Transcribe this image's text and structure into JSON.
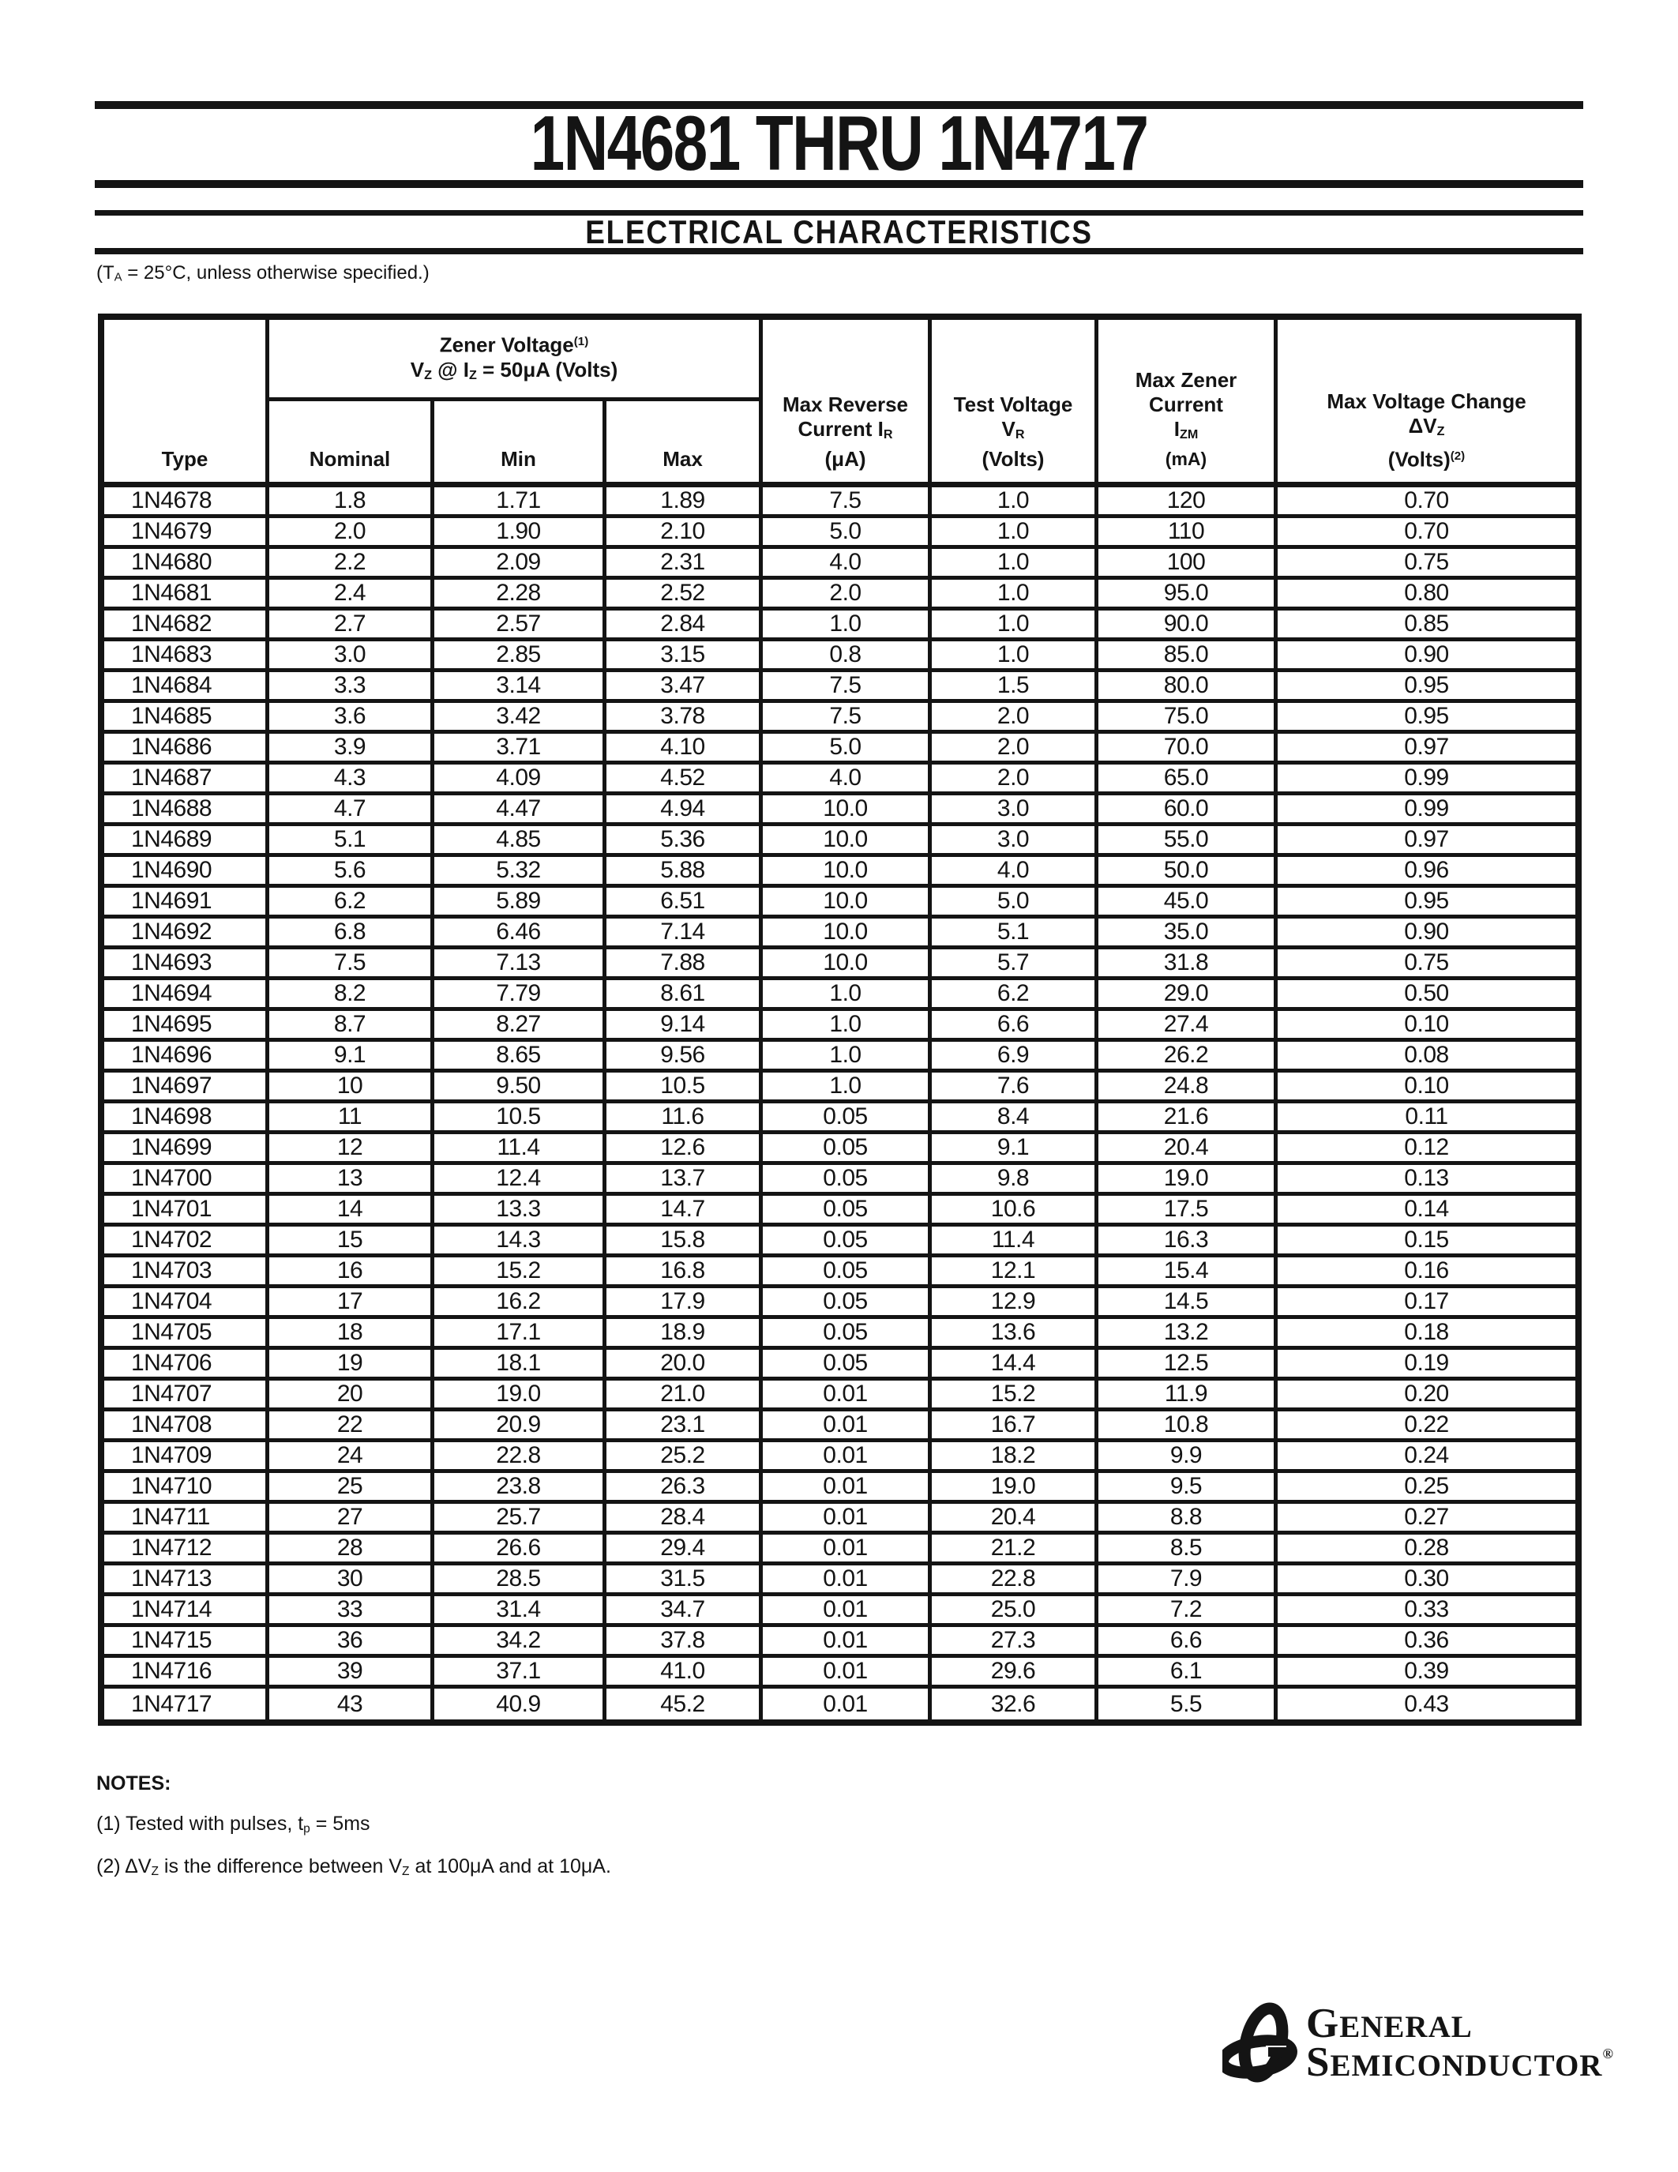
{
  "page": {
    "title": "1N4681 THRU 1N4717",
    "section_title": "ELECTRICAL CHARACTERISTICS",
    "condition": {
      "t1": "(T",
      "sub1": "A",
      "t2": " = 25°C, unless otherwise specified.)"
    }
  },
  "table": {
    "header": {
      "type_label": "Type",
      "zener_group": {
        "title": "Zener Voltage",
        "title_sup": "(1)",
        "cond_v": "V",
        "cond_v_sub": "Z",
        "cond_mid": " @ I",
        "cond_i_sub": "Z",
        "cond_rest": " = 50μA (Volts)",
        "nominal": "Nominal",
        "min": "Min",
        "max": "Max"
      },
      "ir": {
        "l1": "Max Reverse",
        "l2a": "Current I",
        "l2_sub": "R",
        "l3": "(μA)"
      },
      "vr": {
        "l1": "Test Voltage",
        "l2a": "V",
        "l2_sub": "R",
        "l3": "(Volts)"
      },
      "izm": {
        "l1": "Max Zener",
        "l2": "Current",
        "l3a": "I",
        "l3_sub": "ZM",
        "l4": "(mA)"
      },
      "dvz": {
        "l1": "Max Voltage Change",
        "l2a": "ΔV",
        "l2_sub": "Z",
        "l3a": "(Volts)",
        "l3_sup": "(2)"
      }
    },
    "rows": [
      {
        "type": "1N4678",
        "nominal": "1.8",
        "min": "1.71",
        "max": "1.89",
        "ir": "7.5",
        "vr": "1.0",
        "izm": "120",
        "dvz": "0.70"
      },
      {
        "type": "1N4679",
        "nominal": "2.0",
        "min": "1.90",
        "max": "2.10",
        "ir": "5.0",
        "vr": "1.0",
        "izm": "110",
        "dvz": "0.70"
      },
      {
        "type": "1N4680",
        "nominal": "2.2",
        "min": "2.09",
        "max": "2.31",
        "ir": "4.0",
        "vr": "1.0",
        "izm": "100",
        "dvz": "0.75"
      },
      {
        "type": "1N4681",
        "nominal": "2.4",
        "min": "2.28",
        "max": "2.52",
        "ir": "2.0",
        "vr": "1.0",
        "izm": "95.0",
        "dvz": "0.80"
      },
      {
        "type": "1N4682",
        "nominal": "2.7",
        "min": "2.57",
        "max": "2.84",
        "ir": "1.0",
        "vr": "1.0",
        "izm": "90.0",
        "dvz": "0.85"
      },
      {
        "type": "1N4683",
        "nominal": "3.0",
        "min": "2.85",
        "max": "3.15",
        "ir": "0.8",
        "vr": "1.0",
        "izm": "85.0",
        "dvz": "0.90"
      },
      {
        "type": "1N4684",
        "nominal": "3.3",
        "min": "3.14",
        "max": "3.47",
        "ir": "7.5",
        "vr": "1.5",
        "izm": "80.0",
        "dvz": "0.95"
      },
      {
        "type": "1N4685",
        "nominal": "3.6",
        "min": "3.42",
        "max": "3.78",
        "ir": "7.5",
        "vr": "2.0",
        "izm": "75.0",
        "dvz": "0.95"
      },
      {
        "type": "1N4686",
        "nominal": "3.9",
        "min": "3.71",
        "max": "4.10",
        "ir": "5.0",
        "vr": "2.0",
        "izm": "70.0",
        "dvz": "0.97"
      },
      {
        "type": "1N4687",
        "nominal": "4.3",
        "min": "4.09",
        "max": "4.52",
        "ir": "4.0",
        "vr": "2.0",
        "izm": "65.0",
        "dvz": "0.99"
      },
      {
        "type": "1N4688",
        "nominal": "4.7",
        "min": "4.47",
        "max": "4.94",
        "ir": "10.0",
        "vr": "3.0",
        "izm": "60.0",
        "dvz": "0.99"
      },
      {
        "type": "1N4689",
        "nominal": "5.1",
        "min": "4.85",
        "max": "5.36",
        "ir": "10.0",
        "vr": "3.0",
        "izm": "55.0",
        "dvz": "0.97"
      },
      {
        "type": "1N4690",
        "nominal": "5.6",
        "min": "5.32",
        "max": "5.88",
        "ir": "10.0",
        "vr": "4.0",
        "izm": "50.0",
        "dvz": "0.96"
      },
      {
        "type": "1N4691",
        "nominal": "6.2",
        "min": "5.89",
        "max": "6.51",
        "ir": "10.0",
        "vr": "5.0",
        "izm": "45.0",
        "dvz": "0.95"
      },
      {
        "type": "1N4692",
        "nominal": "6.8",
        "min": "6.46",
        "max": "7.14",
        "ir": "10.0",
        "vr": "5.1",
        "izm": "35.0",
        "dvz": "0.90"
      },
      {
        "type": "1N4693",
        "nominal": "7.5",
        "min": "7.13",
        "max": "7.88",
        "ir": "10.0",
        "vr": "5.7",
        "izm": "31.8",
        "dvz": "0.75"
      },
      {
        "type": "1N4694",
        "nominal": "8.2",
        "min": "7.79",
        "max": "8.61",
        "ir": "1.0",
        "vr": "6.2",
        "izm": "29.0",
        "dvz": "0.50"
      },
      {
        "type": "1N4695",
        "nominal": "8.7",
        "min": "8.27",
        "max": "9.14",
        "ir": "1.0",
        "vr": "6.6",
        "izm": "27.4",
        "dvz": "0.10"
      },
      {
        "type": "1N4696",
        "nominal": "9.1",
        "min": "8.65",
        "max": "9.56",
        "ir": "1.0",
        "vr": "6.9",
        "izm": "26.2",
        "dvz": "0.08"
      },
      {
        "type": "1N4697",
        "nominal": "10",
        "min": "9.50",
        "max": "10.5",
        "ir": "1.0",
        "vr": "7.6",
        "izm": "24.8",
        "dvz": "0.10"
      },
      {
        "type": "1N4698",
        "nominal": "11",
        "min": "10.5",
        "max": "11.6",
        "ir": "0.05",
        "vr": "8.4",
        "izm": "21.6",
        "dvz": "0.11"
      },
      {
        "type": "1N4699",
        "nominal": "12",
        "min": "11.4",
        "max": "12.6",
        "ir": "0.05",
        "vr": "9.1",
        "izm": "20.4",
        "dvz": "0.12"
      },
      {
        "type": "1N4700",
        "nominal": "13",
        "min": "12.4",
        "max": "13.7",
        "ir": "0.05",
        "vr": "9.8",
        "izm": "19.0",
        "dvz": "0.13"
      },
      {
        "type": "1N4701",
        "nominal": "14",
        "min": "13.3",
        "max": "14.7",
        "ir": "0.05",
        "vr": "10.6",
        "izm": "17.5",
        "dvz": "0.14"
      },
      {
        "type": "1N4702",
        "nominal": "15",
        "min": "14.3",
        "max": "15.8",
        "ir": "0.05",
        "vr": "11.4",
        "izm": "16.3",
        "dvz": "0.15"
      },
      {
        "type": "1N4703",
        "nominal": "16",
        "min": "15.2",
        "max": "16.8",
        "ir": "0.05",
        "vr": "12.1",
        "izm": "15.4",
        "dvz": "0.16"
      },
      {
        "type": "1N4704",
        "nominal": "17",
        "min": "16.2",
        "max": "17.9",
        "ir": "0.05",
        "vr": "12.9",
        "izm": "14.5",
        "dvz": "0.17"
      },
      {
        "type": "1N4705",
        "nominal": "18",
        "min": "17.1",
        "max": "18.9",
        "ir": "0.05",
        "vr": "13.6",
        "izm": "13.2",
        "dvz": "0.18"
      },
      {
        "type": "1N4706",
        "nominal": "19",
        "min": "18.1",
        "max": "20.0",
        "ir": "0.05",
        "vr": "14.4",
        "izm": "12.5",
        "dvz": "0.19"
      },
      {
        "type": "1N4707",
        "nominal": "20",
        "min": "19.0",
        "max": "21.0",
        "ir": "0.01",
        "vr": "15.2",
        "izm": "11.9",
        "dvz": "0.20"
      },
      {
        "type": "1N4708",
        "nominal": "22",
        "min": "20.9",
        "max": "23.1",
        "ir": "0.01",
        "vr": "16.7",
        "izm": "10.8",
        "dvz": "0.22"
      },
      {
        "type": "1N4709",
        "nominal": "24",
        "min": "22.8",
        "max": "25.2",
        "ir": "0.01",
        "vr": "18.2",
        "izm": "9.9",
        "dvz": "0.24"
      },
      {
        "type": "1N4710",
        "nominal": "25",
        "min": "23.8",
        "max": "26.3",
        "ir": "0.01",
        "vr": "19.0",
        "izm": "9.5",
        "dvz": "0.25"
      },
      {
        "type": "1N4711",
        "nominal": "27",
        "min": "25.7",
        "max": "28.4",
        "ir": "0.01",
        "vr": "20.4",
        "izm": "8.8",
        "dvz": "0.27"
      },
      {
        "type": "1N4712",
        "nominal": "28",
        "min": "26.6",
        "max": "29.4",
        "ir": "0.01",
        "vr": "21.2",
        "izm": "8.5",
        "dvz": "0.28"
      },
      {
        "type": "1N4713",
        "nominal": "30",
        "min": "28.5",
        "max": "31.5",
        "ir": "0.01",
        "vr": "22.8",
        "izm": "7.9",
        "dvz": "0.30"
      },
      {
        "type": "1N4714",
        "nominal": "33",
        "min": "31.4",
        "max": "34.7",
        "ir": "0.01",
        "vr": "25.0",
        "izm": "7.2",
        "dvz": "0.33"
      },
      {
        "type": "1N4715",
        "nominal": "36",
        "min": "34.2",
        "max": "37.8",
        "ir": "0.01",
        "vr": "27.3",
        "izm": "6.6",
        "dvz": "0.36"
      },
      {
        "type": "1N4716",
        "nominal": "39",
        "min": "37.1",
        "max": "41.0",
        "ir": "0.01",
        "vr": "29.6",
        "izm": "6.1",
        "dvz": "0.39"
      },
      {
        "type": "1N4717",
        "nominal": "43",
        "min": "40.9",
        "max": "45.2",
        "ir": "0.01",
        "vr": "32.6",
        "izm": "5.5",
        "dvz": "0.43"
      }
    ]
  },
  "notes": {
    "heading": "NOTES:",
    "note1": {
      "t1": "(1) Tested with pulses, t",
      "sub1": "p",
      "t2": " = 5ms"
    },
    "note2": {
      "t1": "(2) ΔV",
      "sub1": "Z",
      "t2": " is the difference between V",
      "sub2": "Z",
      "t3": " at 100μA and at 10μA."
    }
  },
  "logo": {
    "line1": "GENERAL",
    "line2": "SEMICONDUCTOR",
    "reg": "®"
  },
  "colors": {
    "ink": "#141414",
    "paper": "#ffffff"
  }
}
